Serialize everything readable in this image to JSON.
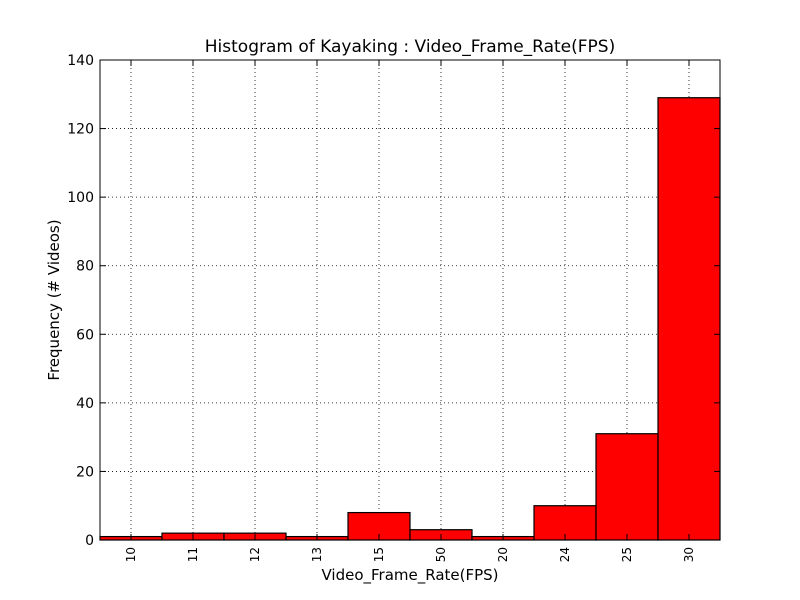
{
  "chart_data": {
    "type": "bar",
    "title": "Histogram of Kayaking : Video_Frame_Rate(FPS)",
    "xlabel": "Video_Frame_Rate(FPS)",
    "ylabel": "Frequency (# Videos)",
    "categories": [
      "10",
      "11",
      "12",
      "13",
      "15",
      "50",
      "20",
      "24",
      "25",
      "30"
    ],
    "values": [
      1,
      2,
      2,
      1,
      8,
      3,
      1,
      10,
      31,
      129
    ],
    "ylim": [
      0,
      140
    ],
    "yticks": [
      0,
      20,
      40,
      60,
      80,
      100,
      120,
      140
    ],
    "ytick_labels": [
      "0",
      "20",
      "40",
      "60",
      "80",
      "100",
      "120",
      "140"
    ],
    "grid": true,
    "bar_color": "#ff0000",
    "edge_color": "#000000"
  }
}
